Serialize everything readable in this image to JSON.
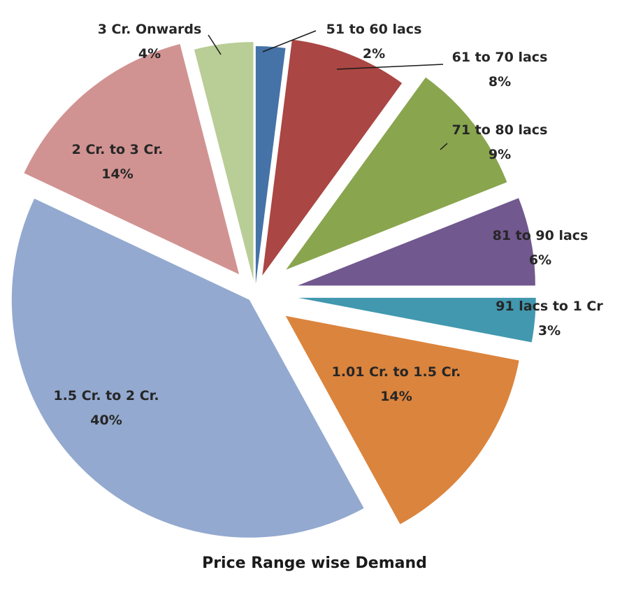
{
  "chart_data": {
    "type": "pie",
    "title": "Price Range wise Demand",
    "slices": [
      {
        "label": "51 to 60 lacs",
        "value": 2,
        "value_text": "2%",
        "color": "#4572A7"
      },
      {
        "label": "61 to 70 lacs",
        "value": 8,
        "value_text": "8%",
        "color": "#AA4643"
      },
      {
        "label": "71 to 80 lacs",
        "value": 9,
        "value_text": "9%",
        "color": "#89A54E"
      },
      {
        "label": "81 to 90 lacs",
        "value": 6,
        "value_text": "6%",
        "color": "#71588F"
      },
      {
        "label": "91 lacs to 1 Cr",
        "value": 3,
        "value_text": "3%",
        "color": "#4198AF"
      },
      {
        "label": "1.01 Cr. to 1.5 Cr.",
        "value": 14,
        "value_text": "14%",
        "color": "#DB843D"
      },
      {
        "label": "1.5 Cr. to 2 Cr.",
        "value": 40,
        "value_text": "40%",
        "color": "#93A9CF"
      },
      {
        "label": "2 Cr. to 3 Cr.",
        "value": 14,
        "value_text": "14%",
        "color": "#D19392"
      },
      {
        "label": "3 Cr. Onwards",
        "value": 4,
        "value_text": "4%",
        "color": "#B9CD96"
      }
    ],
    "legend": "none",
    "data_labels": "category name and percentage",
    "exploded": true
  }
}
